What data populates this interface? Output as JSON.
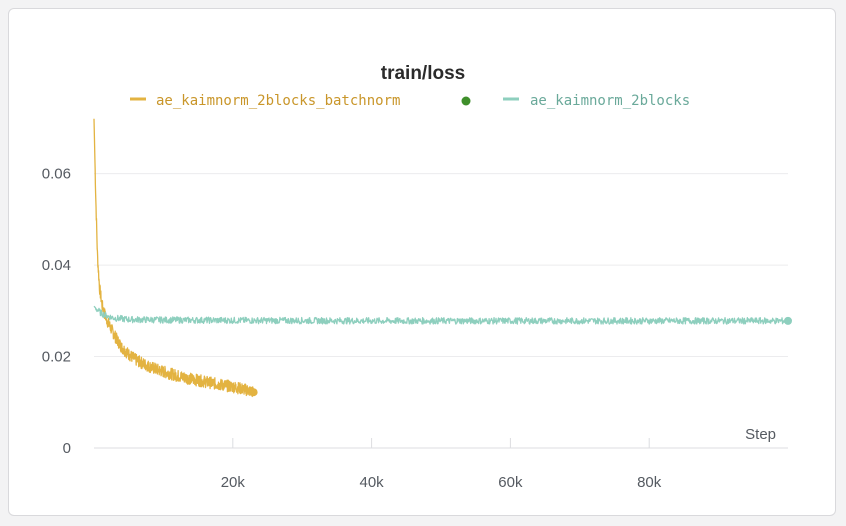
{
  "chart_data": {
    "type": "line",
    "title": "train/loss",
    "xlabel": "Step",
    "ylabel": "",
    "xlim": [
      0,
      100000
    ],
    "ylim": [
      0,
      0.075
    ],
    "xticks": [
      20000,
      40000,
      60000,
      80000
    ],
    "xtick_labels": [
      "20k",
      "40k",
      "60k",
      "80k"
    ],
    "yticks": [
      0,
      0.02,
      0.04,
      0.06
    ],
    "ytick_labels": [
      "0",
      "0.02",
      "0.04",
      "0.06"
    ],
    "grid": true,
    "legend_position": "top-center",
    "series": [
      {
        "name": "ae_kaimnorm_2blocks_batchnorm",
        "color": "#e3b341",
        "x": [
          0,
          250,
          500,
          800,
          1200,
          1600,
          2000,
          2500,
          3000,
          3500,
          4000,
          5000,
          6000,
          7000,
          8000,
          9000,
          10000,
          12000,
          14000,
          16000,
          18000,
          20000,
          22000,
          23000
        ],
        "y": [
          0.072,
          0.055,
          0.042,
          0.035,
          0.031,
          0.029,
          0.0275,
          0.026,
          0.0245,
          0.0232,
          0.022,
          0.0205,
          0.0193,
          0.0185,
          0.0178,
          0.0172,
          0.0167,
          0.0158,
          0.0151,
          0.0145,
          0.0139,
          0.0134,
          0.0127,
          0.0122
        ]
      },
      {
        "name": "ae_kaimnorm_2blocks",
        "color": "#8ecfbe",
        "x": [
          0,
          500,
          1000,
          2000,
          3000,
          5000,
          10000,
          20000,
          40000,
          60000,
          80000,
          100000
        ],
        "y": [
          0.031,
          0.0302,
          0.0295,
          0.0288,
          0.0284,
          0.0281,
          0.028,
          0.0279,
          0.0278,
          0.0278,
          0.0278,
          0.0278
        ]
      }
    ]
  },
  "legend": {
    "series_1_color": "#e3b341",
    "series_2_color": "#8ecfbe",
    "status_dot_color": "#3f8f2b"
  }
}
